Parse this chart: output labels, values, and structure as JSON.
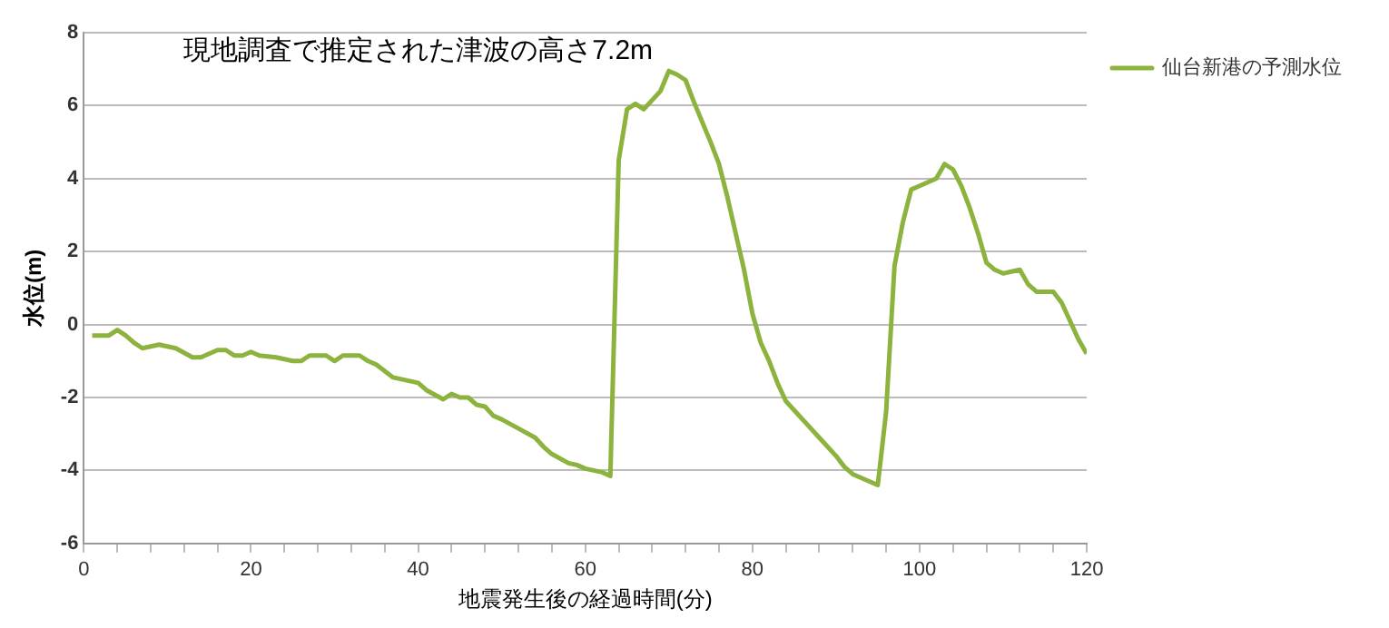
{
  "chart_data": {
    "type": "line",
    "title": "現地調査で推定された津波の高さ7.2m",
    "xlabel": "地震発生後の経過時間(分)",
    "ylabel": "水位(m)",
    "x": [
      1,
      3,
      4,
      5,
      6,
      7,
      9,
      10,
      11,
      13,
      14,
      16,
      17,
      18,
      19,
      20,
      21,
      23,
      25,
      26,
      27,
      29,
      30,
      31,
      33,
      34,
      35,
      37,
      38,
      40,
      41,
      43,
      44,
      45,
      46,
      47,
      48,
      49,
      50,
      52,
      54,
      55,
      56,
      58,
      59,
      60,
      62,
      63,
      64,
      65,
      66,
      67,
      68,
      69,
      70,
      71,
      72,
      73,
      75,
      76,
      77,
      78,
      79,
      80,
      81,
      82,
      83,
      84,
      86,
      88,
      90,
      91,
      92,
      94,
      95,
      96,
      97,
      98,
      99,
      101,
      102,
      103,
      104,
      105,
      106,
      107,
      108,
      109,
      110,
      111,
      112,
      113,
      114,
      116,
      117,
      118,
      119,
      120
    ],
    "series": [
      {
        "name": "仙台新港の予測水位",
        "color": "#8db33f",
        "values": [
          -0.3,
          -0.3,
          -0.15,
          -0.3,
          -0.5,
          -0.65,
          -0.55,
          -0.6,
          -0.65,
          -0.9,
          -0.9,
          -0.7,
          -0.7,
          -0.85,
          -0.85,
          -0.75,
          -0.85,
          -0.9,
          -1.0,
          -1.0,
          -0.85,
          -0.85,
          -1.0,
          -0.85,
          -0.85,
          -1.0,
          -1.1,
          -1.45,
          -1.5,
          -1.6,
          -1.8,
          -2.05,
          -1.9,
          -2.0,
          -2.0,
          -2.2,
          -2.25,
          -2.5,
          -2.6,
          -2.85,
          -3.1,
          -3.35,
          -3.55,
          -3.8,
          -3.85,
          -3.95,
          -4.05,
          -4.15,
          4.5,
          5.9,
          6.05,
          5.9,
          6.15,
          6.4,
          6.95,
          6.85,
          6.7,
          6.1,
          5.0,
          4.4,
          3.5,
          2.5,
          1.5,
          0.3,
          -0.5,
          -1.0,
          -1.6,
          -2.1,
          -2.6,
          -3.1,
          -3.6,
          -3.9,
          -4.1,
          -4.3,
          -4.4,
          -2.4,
          1.6,
          2.8,
          3.7,
          3.9,
          4.0,
          4.4,
          4.25,
          3.8,
          3.2,
          2.5,
          1.7,
          1.5,
          1.4,
          1.45,
          1.5,
          1.1,
          0.9,
          0.9,
          0.6,
          0.1,
          -0.4,
          -0.8
        ]
      }
    ],
    "xlim": [
      0,
      120
    ],
    "xticks": [
      0,
      {
        "value": 4,
        "label": null
      },
      {
        "value": 8,
        "label": null
      },
      {
        "value": 12,
        "label": null
      },
      {
        "value": 16,
        "label": null
      },
      20,
      {
        "value": 24,
        "label": null
      },
      {
        "value": 28,
        "label": null
      },
      {
        "value": 32,
        "label": null
      },
      {
        "value": 36,
        "label": null
      },
      40,
      {
        "value": 44,
        "label": null
      },
      {
        "value": 48,
        "label": null
      },
      {
        "value": 52,
        "label": null
      },
      {
        "value": 56,
        "label": null
      },
      60,
      {
        "value": 64,
        "label": null
      },
      {
        "value": 68,
        "label": null
      },
      {
        "value": 72,
        "label": null
      },
      {
        "value": 76,
        "label": null
      },
      80,
      {
        "value": 84,
        "label": null
      },
      {
        "value": 88,
        "label": null
      },
      {
        "value": 92,
        "label": null
      },
      {
        "value": 96,
        "label": null
      },
      100,
      {
        "value": 104,
        "label": null
      },
      {
        "value": 108,
        "label": null
      },
      {
        "value": 112,
        "label": null
      },
      {
        "value": 116,
        "label": null
      },
      120
    ],
    "ylim": [
      -6,
      8
    ],
    "yticks": [
      -6,
      -4,
      -2,
      0,
      2,
      4,
      6,
      8
    ],
    "grid": "y",
    "legend": "top right",
    "marker": "none",
    "line_style": "solid"
  }
}
